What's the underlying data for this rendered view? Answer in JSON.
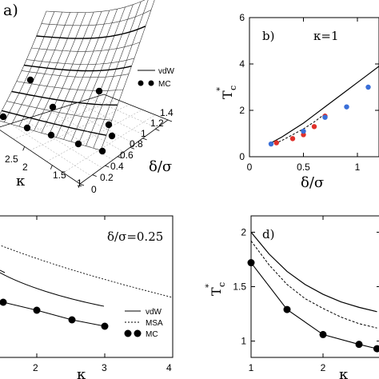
{
  "chart_data": [
    {
      "panel": "a",
      "type": "surface",
      "panel_label": "a)",
      "xlabel": "κ",
      "ylabel": "δ/σ",
      "x_ticks": [
        "1",
        "1.5",
        "2",
        "2.5"
      ],
      "y_ticks": [
        "0",
        "0.2",
        "0.4",
        "0.6",
        "0.8",
        "1",
        "1.2",
        "1.4"
      ],
      "legend": [
        {
          "label": "vdW",
          "style": "line"
        },
        {
          "label": "MC",
          "style": "dots"
        }
      ]
    },
    {
      "panel": "b",
      "type": "line",
      "panel_label": "b)",
      "annotation": "κ=1",
      "xlabel": "δ/σ",
      "ylabel": "T",
      "ylabel_sub": "c",
      "ylabel_sup": "*",
      "xlim": [
        0,
        1.2
      ],
      "ylim": [
        0,
        6
      ],
      "x_ticks": [
        0,
        0.5,
        1
      ],
      "y_ticks": [
        0,
        2,
        4,
        6
      ],
      "series": [
        {
          "style": "solid",
          "x": [
            0.2,
            0.3,
            0.4,
            0.5,
            0.6,
            0.7,
            0.8,
            0.9,
            1.0,
            1.1,
            1.2
          ],
          "y": [
            0.6,
            0.85,
            1.15,
            1.45,
            1.8,
            2.15,
            2.5,
            2.85,
            3.2,
            3.55,
            3.9
          ]
        },
        {
          "style": "dashed",
          "x": [
            0.2,
            0.3,
            0.4,
            0.5,
            0.6,
            0.7
          ],
          "y": [
            0.5,
            0.7,
            0.95,
            1.2,
            1.5,
            1.85
          ]
        },
        {
          "style": "red-dots",
          "x": [
            0.25,
            0.4,
            0.5,
            0.6,
            0.7
          ],
          "y": [
            0.6,
            0.78,
            0.95,
            1.3,
            1.75
          ]
        },
        {
          "style": "blue-dots",
          "x": [
            0.2,
            0.5,
            0.7,
            0.9,
            1.1
          ],
          "y": [
            0.55,
            1.1,
            1.7,
            2.15,
            3.0
          ]
        }
      ]
    },
    {
      "panel": "c",
      "type": "line",
      "annotation": "δ/σ=0.25",
      "xlabel": "κ",
      "xlim": [
        1,
        4
      ],
      "x_ticks": [
        "2",
        "3",
        "4"
      ],
      "legend": [
        {
          "label": "vdW",
          "style": "solid"
        },
        {
          "label": "MSA",
          "style": "dashed"
        },
        {
          "label": "MC",
          "style": "dots"
        }
      ]
    },
    {
      "panel": "d",
      "type": "line",
      "panel_label": "d)",
      "xlabel": "κ",
      "ylabel": "T",
      "ylabel_sub": "c",
      "ylabel_sup": "*",
      "xlim": [
        1,
        2.8
      ],
      "ylim": [
        0.85,
        2.15
      ],
      "x_ticks": [
        1,
        2
      ],
      "y_ticks": [
        1,
        1.5,
        2
      ],
      "series": [
        {
          "style": "solid",
          "x": [
            1.0,
            1.25,
            1.5,
            1.75,
            2.0,
            2.25,
            2.5,
            2.75
          ],
          "y": [
            2.0,
            1.8,
            1.64,
            1.52,
            1.43,
            1.36,
            1.31,
            1.27
          ]
        },
        {
          "style": "dashed",
          "x": [
            1.0,
            1.25,
            1.5,
            1.75,
            2.0,
            2.25,
            2.5,
            2.75
          ],
          "y": [
            1.92,
            1.7,
            1.52,
            1.39,
            1.3,
            1.22,
            1.16,
            1.12
          ]
        },
        {
          "style": "dots-line",
          "x": [
            1.0,
            1.5,
            2.0,
            2.5,
            2.75
          ],
          "y": [
            1.72,
            1.29,
            1.06,
            0.97,
            0.93
          ]
        }
      ]
    }
  ]
}
